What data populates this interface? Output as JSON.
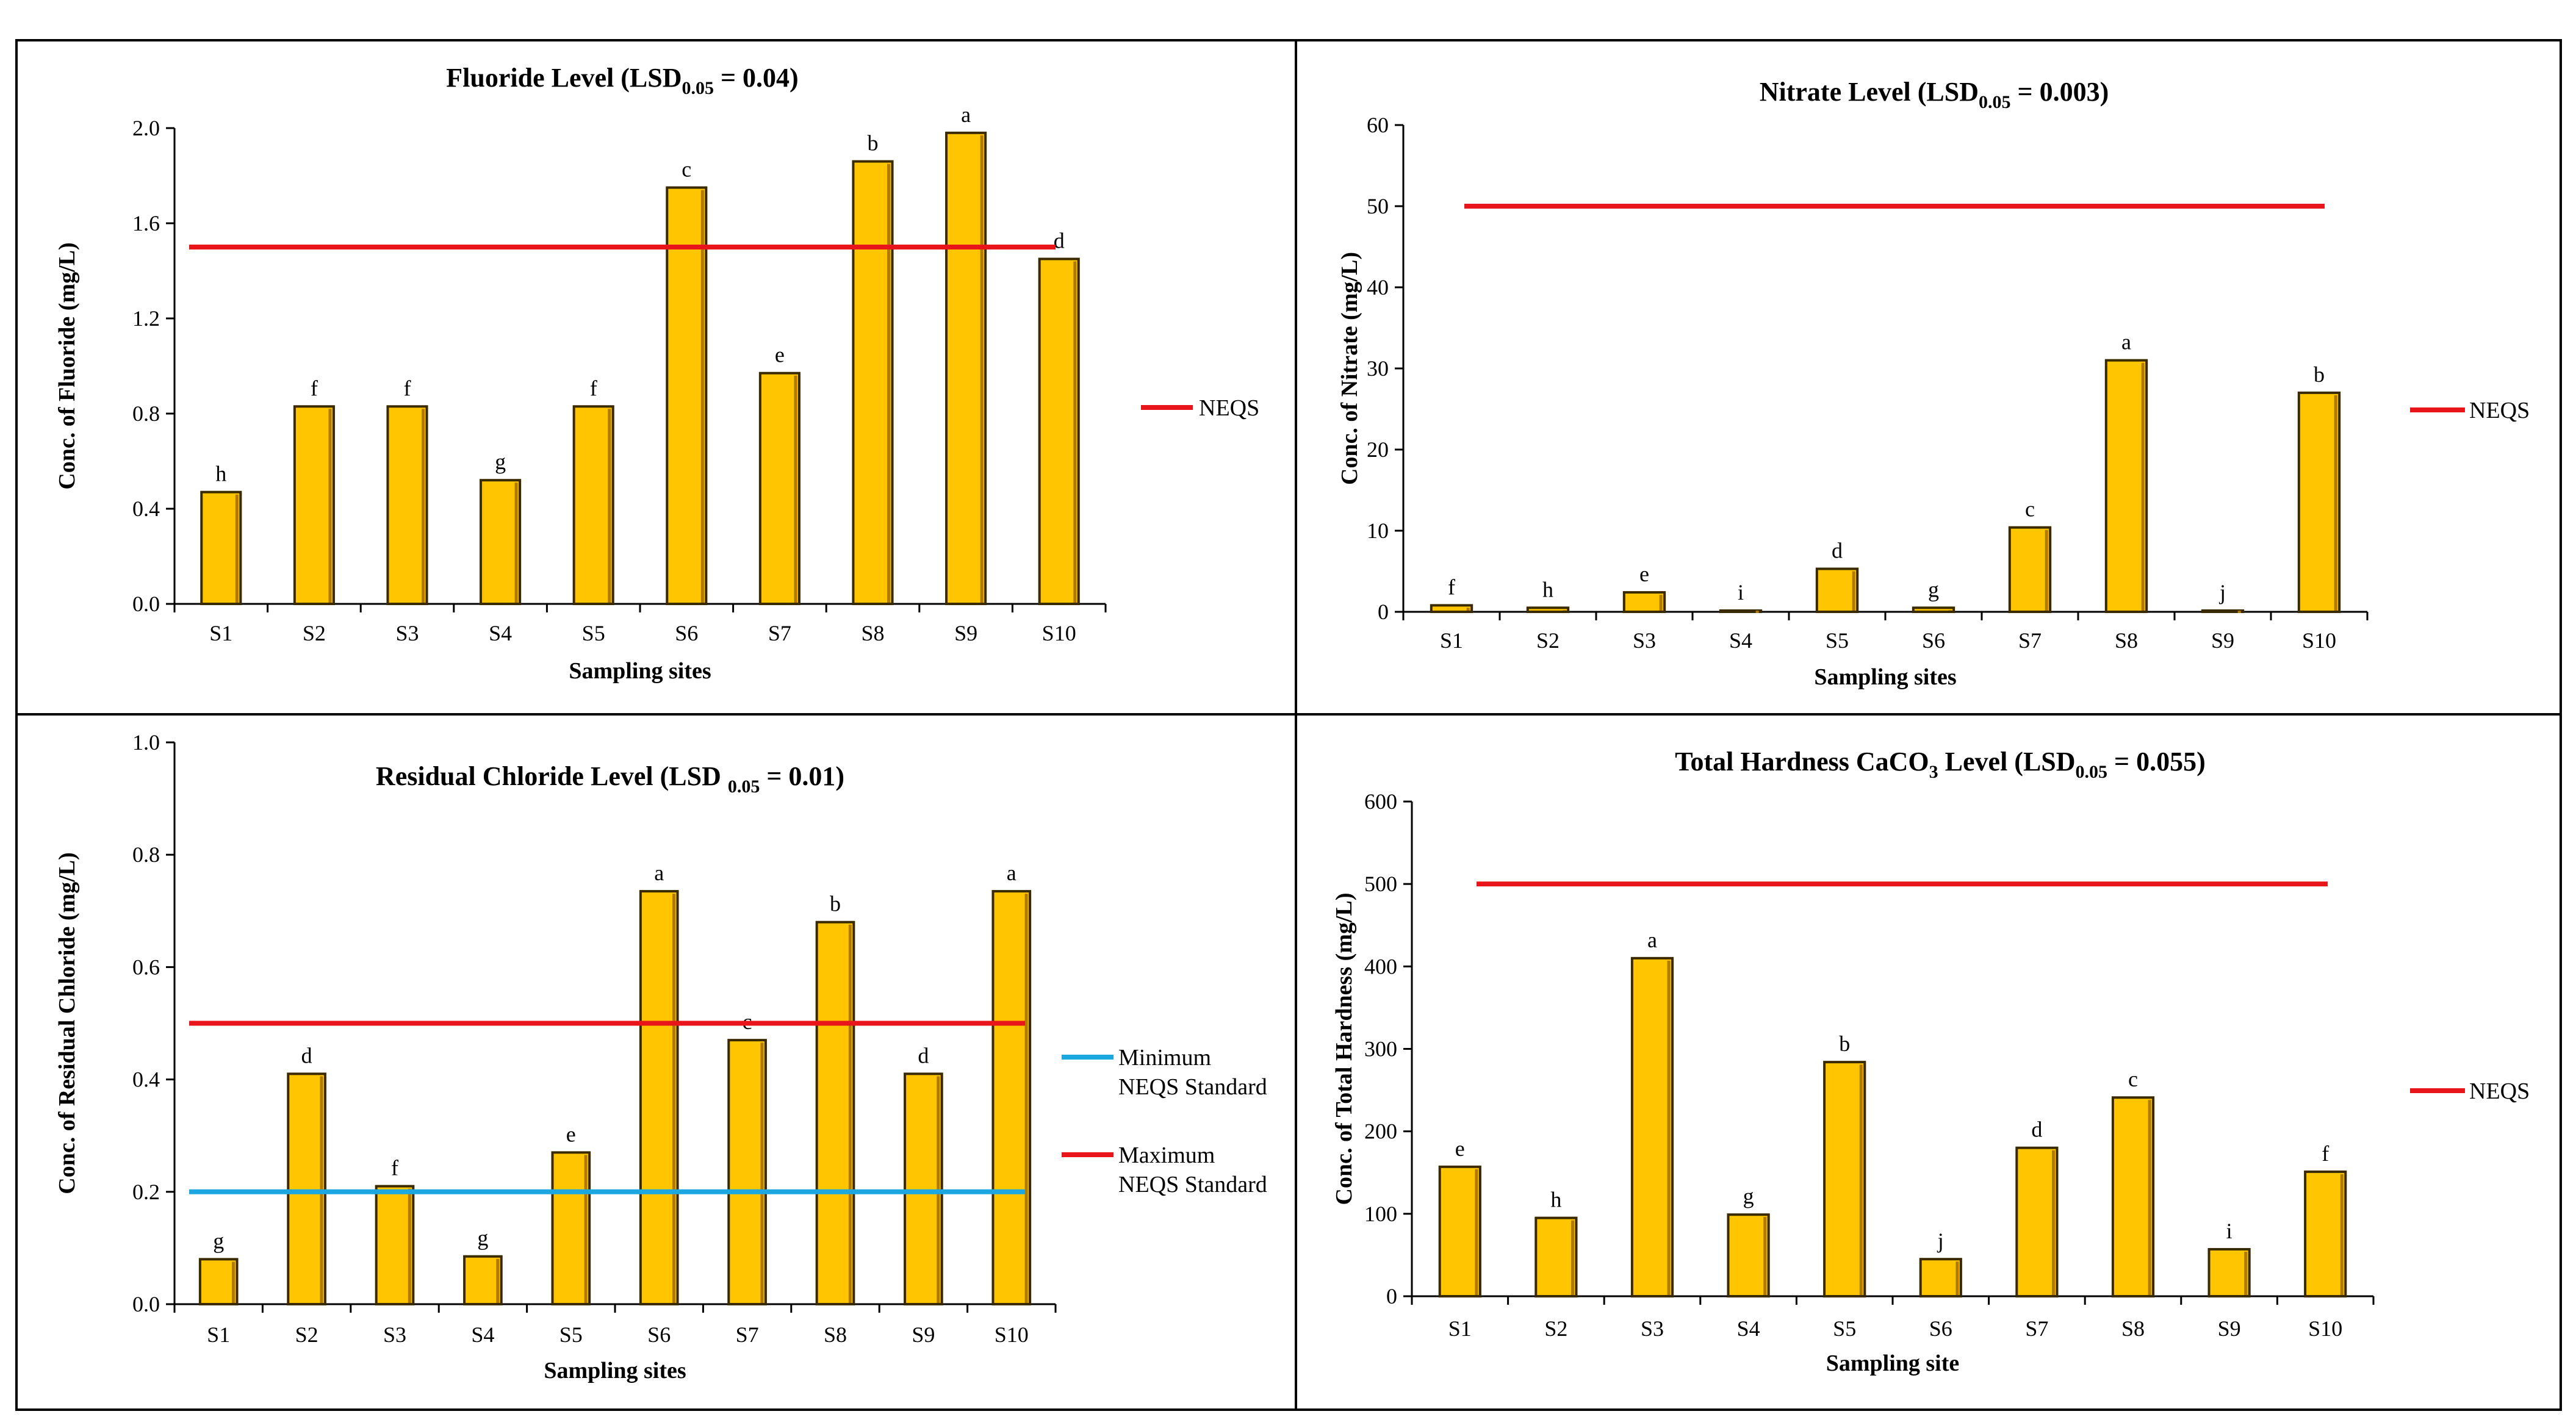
{
  "colors": {
    "bar_fill": "#FFC600",
    "bar_edge": "#3A2A00",
    "neqs_red": "#E8161B",
    "min_blue": "#1CA7E0",
    "frame": "#000000"
  },
  "chart_data": [
    {
      "type": "bar",
      "title_parts": [
        "Fluoride Level (LSD",
        "0.05",
        " = 0.04)"
      ],
      "xlabel": "Sampling sites",
      "ylabel": "Conc. of Fluoride (mg/L)",
      "categories": [
        "S1",
        "S2",
        "S3",
        "S4",
        "S5",
        "S6",
        "S7",
        "S8",
        "S9",
        "S10"
      ],
      "values": [
        0.47,
        0.83,
        0.83,
        0.52,
        0.83,
        1.75,
        0.97,
        1.86,
        1.98,
        1.45
      ],
      "letters": [
        "h",
        "f",
        "f",
        "g",
        "f",
        "c",
        "e",
        "b",
        "a",
        "d"
      ],
      "ylim": [
        0,
        2.0
      ],
      "yticks": [
        "0.0",
        "0.4",
        "0.8",
        "1.2",
        "1.6",
        "2.0"
      ],
      "reference_lines": [
        {
          "name": "NEQS",
          "value": 1.5,
          "color": "#E8161B"
        }
      ],
      "legend": [
        {
          "lines": [
            "NEQS"
          ],
          "color": "#E8161B"
        }
      ]
    },
    {
      "type": "bar",
      "title_parts": [
        "Nitrate Level (LSD",
        "0.05",
        " = 0.003)"
      ],
      "xlabel": "Sampling sites",
      "ylabel": "Conc. of Nitrate (mg/L)",
      "categories": [
        "S1",
        "S2",
        "S3",
        "S4",
        "S5",
        "S6",
        "S7",
        "S8",
        "S9",
        "S10"
      ],
      "values": [
        0.8,
        0.5,
        2.4,
        0.15,
        5.3,
        0.5,
        10.4,
        31.0,
        0.15,
        27.0
      ],
      "letters": [
        "f",
        "h",
        "e",
        "i",
        "d",
        "g",
        "c",
        "a",
        "j",
        "b"
      ],
      "ylim": [
        0,
        60
      ],
      "yticks": [
        "0",
        "10",
        "20",
        "30",
        "40",
        "50",
        "60"
      ],
      "reference_lines": [
        {
          "name": "NEQS",
          "value": 50,
          "color": "#E8161B"
        }
      ],
      "legend": [
        {
          "lines": [
            "NEQS"
          ],
          "color": "#E8161B"
        }
      ]
    },
    {
      "type": "bar",
      "title_parts": [
        "Residual Chloride Level (LSD ",
        "0.05",
        " = 0.01)"
      ],
      "xlabel": "Sampling sites",
      "ylabel": "Conc. of Residual Chloride (mg/L)",
      "categories": [
        "S1",
        "S2",
        "S3",
        "S4",
        "S5",
        "S6",
        "S7",
        "S8",
        "S9",
        "S10"
      ],
      "values": [
        0.08,
        0.41,
        0.21,
        0.085,
        0.27,
        0.735,
        0.47,
        0.68,
        0.41,
        0.735
      ],
      "letters": [
        "g",
        "d",
        "f",
        "g",
        "e",
        "a",
        "c",
        "b",
        "d",
        "a"
      ],
      "ylim": [
        0,
        1.0
      ],
      "yticks": [
        "0.0",
        "0.2",
        "0.4",
        "0.6",
        "0.8",
        "1.0"
      ],
      "reference_lines": [
        {
          "name": "Maximum NEQS Standard",
          "value": 0.5,
          "color": "#E8161B"
        },
        {
          "name": "Minimum NEQS Standard",
          "value": 0.2,
          "color": "#1CA7E0"
        }
      ],
      "legend": [
        {
          "lines": [
            "Minimum",
            "NEQS Standard"
          ],
          "color": "#1CA7E0"
        },
        {
          "lines": [
            "Maximum",
            "NEQS Standard"
          ],
          "color": "#E8161B"
        }
      ]
    },
    {
      "type": "bar",
      "title_parts": [
        "Total Hardness CaCO",
        "3",
        " Level (LSD",
        "0.05",
        " = 0.055)"
      ],
      "xlabel": "Sampling site",
      "ylabel": "Conc. of Total Hardness  (mg/L)",
      "categories": [
        "S1",
        "S2",
        "S3",
        "S4",
        "S5",
        "S6",
        "S7",
        "S8",
        "S9",
        "S10"
      ],
      "values": [
        157,
        95,
        410,
        99,
        284,
        45,
        180,
        241,
        57,
        151
      ],
      "letters": [
        "e",
        "h",
        "a",
        "g",
        "b",
        "j",
        "d",
        "c",
        "i",
        "f"
      ],
      "ylim": [
        0,
        600
      ],
      "yticks": [
        "0",
        "100",
        "200",
        "300",
        "400",
        "500",
        "600"
      ],
      "reference_lines": [
        {
          "name": "NEQS",
          "value": 500,
          "color": "#E8161B"
        }
      ],
      "legend": [
        {
          "lines": [
            "NEQS"
          ],
          "color": "#E8161B"
        }
      ]
    }
  ]
}
